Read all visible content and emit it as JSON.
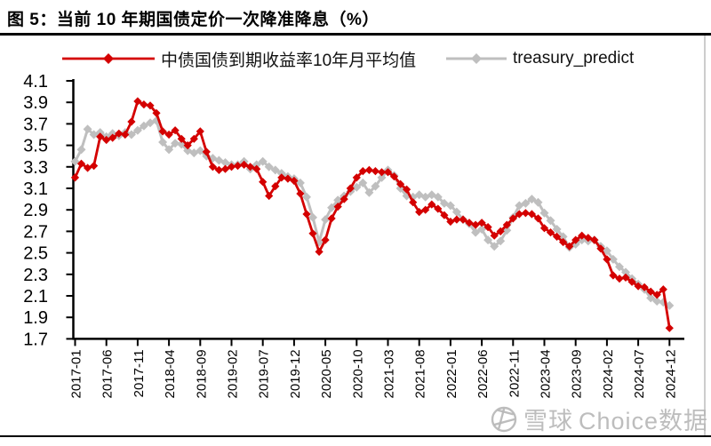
{
  "figure": {
    "title": "图 5：当前 10 年期国债定价一次降准降息（%）"
  },
  "legend": [
    {
      "label": "中债国债到期收益率10年月平均值",
      "color": "#d40000",
      "marker": "diamond"
    },
    {
      "label": "treasury_predict",
      "color": "#bfbfbf",
      "marker": "diamond"
    }
  ],
  "watermark": {
    "icon": "xueqiu-aperture",
    "site": "雪球",
    "source": "Choice数据"
  },
  "chart_data": {
    "type": "line",
    "title": "图 5：当前 10 年期国债定价一次降准降息（%）",
    "xlabel": "",
    "ylabel": "",
    "ylim": [
      1.7,
      4.1
    ],
    "ytick_step": 0.2,
    "y_ticks": [
      "1.7",
      "1.9",
      "2.1",
      "2.3",
      "2.5",
      "2.7",
      "2.9",
      "3.1",
      "3.3",
      "3.5",
      "3.7",
      "3.9",
      "4.1"
    ],
    "grid": false,
    "legend_position": "top",
    "x_tick_every": 5,
    "x_tick_labels": [
      "2017-01",
      "2017-06",
      "2017-11",
      "2018-04",
      "2018-09",
      "2019-02",
      "2019-07",
      "2019-12",
      "2020-05",
      "2020-10",
      "2021-03",
      "2021-08",
      "2022-01",
      "2022-06",
      "2022-11",
      "2023-04",
      "2023-09",
      "2024-02",
      "2024-07",
      "2024-12"
    ],
    "x": [
      "2017-01",
      "2017-02",
      "2017-03",
      "2017-04",
      "2017-05",
      "2017-06",
      "2017-07",
      "2017-08",
      "2017-09",
      "2017-10",
      "2017-11",
      "2017-12",
      "2018-01",
      "2018-02",
      "2018-03",
      "2018-04",
      "2018-05",
      "2018-06",
      "2018-07",
      "2018-08",
      "2018-09",
      "2018-10",
      "2018-11",
      "2018-12",
      "2019-01",
      "2019-02",
      "2019-03",
      "2019-04",
      "2019-05",
      "2019-06",
      "2019-07",
      "2019-08",
      "2019-09",
      "2019-10",
      "2019-11",
      "2019-12",
      "2020-01",
      "2020-02",
      "2020-03",
      "2020-04",
      "2020-05",
      "2020-06",
      "2020-07",
      "2020-08",
      "2020-09",
      "2020-10",
      "2020-11",
      "2020-12",
      "2021-01",
      "2021-02",
      "2021-03",
      "2021-04",
      "2021-05",
      "2021-06",
      "2021-07",
      "2021-08",
      "2021-09",
      "2021-10",
      "2021-11",
      "2021-12",
      "2022-01",
      "2022-02",
      "2022-03",
      "2022-04",
      "2022-05",
      "2022-06",
      "2022-07",
      "2022-08",
      "2022-09",
      "2022-10",
      "2022-11",
      "2022-12",
      "2023-01",
      "2023-02",
      "2023-03",
      "2023-04",
      "2023-05",
      "2023-06",
      "2023-07",
      "2023-08",
      "2023-09",
      "2023-10",
      "2023-11",
      "2023-12",
      "2024-01",
      "2024-02",
      "2024-03",
      "2024-04",
      "2024-05",
      "2024-06",
      "2024-07",
      "2024-08",
      "2024-09",
      "2024-10",
      "2024-11",
      "2024-12"
    ],
    "series": [
      {
        "name": "中债国债到期收益率10年月平均值",
        "color": "#d40000",
        "marker": "diamond",
        "values": [
          3.2,
          3.33,
          3.29,
          3.31,
          3.58,
          3.55,
          3.57,
          3.61,
          3.6,
          3.72,
          3.91,
          3.88,
          3.87,
          3.8,
          3.63,
          3.6,
          3.64,
          3.56,
          3.5,
          3.56,
          3.63,
          3.44,
          3.3,
          3.27,
          3.28,
          3.3,
          3.31,
          3.32,
          3.3,
          3.28,
          3.16,
          3.03,
          3.12,
          3.2,
          3.19,
          3.17,
          3.05,
          2.86,
          2.68,
          2.51,
          2.62,
          2.82,
          2.93,
          3.0,
          3.1,
          3.2,
          3.26,
          3.27,
          3.26,
          3.25,
          3.25,
          3.21,
          3.14,
          3.09,
          2.97,
          2.88,
          2.9,
          2.95,
          2.91,
          2.85,
          2.79,
          2.81,
          2.81,
          2.78,
          2.76,
          2.78,
          2.74,
          2.66,
          2.7,
          2.76,
          2.82,
          2.86,
          2.87,
          2.86,
          2.82,
          2.73,
          2.69,
          2.65,
          2.6,
          2.56,
          2.62,
          2.66,
          2.64,
          2.62,
          2.54,
          2.44,
          2.29,
          2.26,
          2.27,
          2.23,
          2.19,
          2.18,
          2.14,
          2.11,
          2.16,
          1.8
        ]
      },
      {
        "name": "treasury_predict",
        "color": "#bfbfbf",
        "marker": "diamond",
        "values": [
          3.35,
          3.46,
          3.65,
          3.6,
          3.62,
          3.58,
          3.61,
          3.59,
          3.62,
          3.6,
          3.64,
          3.68,
          3.71,
          3.73,
          3.53,
          3.46,
          3.52,
          3.51,
          3.45,
          3.43,
          3.45,
          3.4,
          3.38,
          3.36,
          3.34,
          3.32,
          3.32,
          3.35,
          3.28,
          3.32,
          3.35,
          3.3,
          3.27,
          3.24,
          3.21,
          3.19,
          3.15,
          3.02,
          2.83,
          2.6,
          2.81,
          2.92,
          2.99,
          3.03,
          3.07,
          3.11,
          3.15,
          3.06,
          3.12,
          3.2,
          3.27,
          3.22,
          3.1,
          3.03,
          3.02,
          3.04,
          3.02,
          3.04,
          3.02,
          2.96,
          2.94,
          2.88,
          2.81,
          2.77,
          2.69,
          2.72,
          2.62,
          2.56,
          2.61,
          2.71,
          2.83,
          2.94,
          2.96,
          3.0,
          2.97,
          2.87,
          2.8,
          2.72,
          2.65,
          2.55,
          2.58,
          2.62,
          2.61,
          2.62,
          2.56,
          2.52,
          2.44,
          2.37,
          2.32,
          2.26,
          2.21,
          2.16,
          2.08,
          2.05,
          2.04,
          2.01
        ]
      }
    ]
  }
}
